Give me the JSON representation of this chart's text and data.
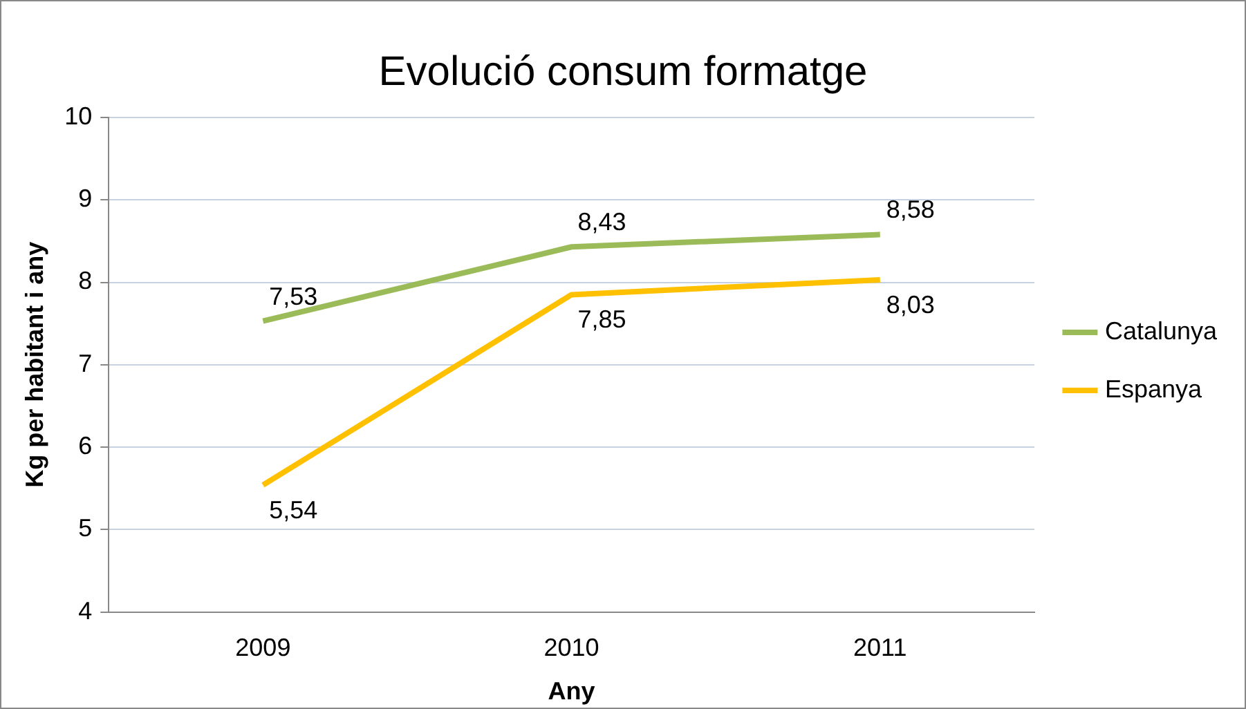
{
  "chart_data": {
    "type": "line",
    "title": "Evolució consum formatge",
    "xlabel": "Any",
    "ylabel": "Kg per habitant i any",
    "categories": [
      "2009",
      "2010",
      "2011"
    ],
    "series": [
      {
        "name": "Catalunya",
        "color": "#9bbb59",
        "values": [
          7.53,
          8.43,
          8.58
        ],
        "value_labels": [
          "7,53",
          "8,43",
          "8,58"
        ]
      },
      {
        "name": "Espanya",
        "color": "#ffc000",
        "values": [
          5.54,
          7.85,
          8.03
        ],
        "value_labels": [
          "5,54",
          "7,85",
          "8,03"
        ]
      }
    ],
    "ylim": [
      4,
      10
    ],
    "yticks": [
      4,
      5,
      6,
      7,
      8,
      9,
      10
    ],
    "grid": "y",
    "legend": "right",
    "marker": "none",
    "line_style": "solid"
  }
}
